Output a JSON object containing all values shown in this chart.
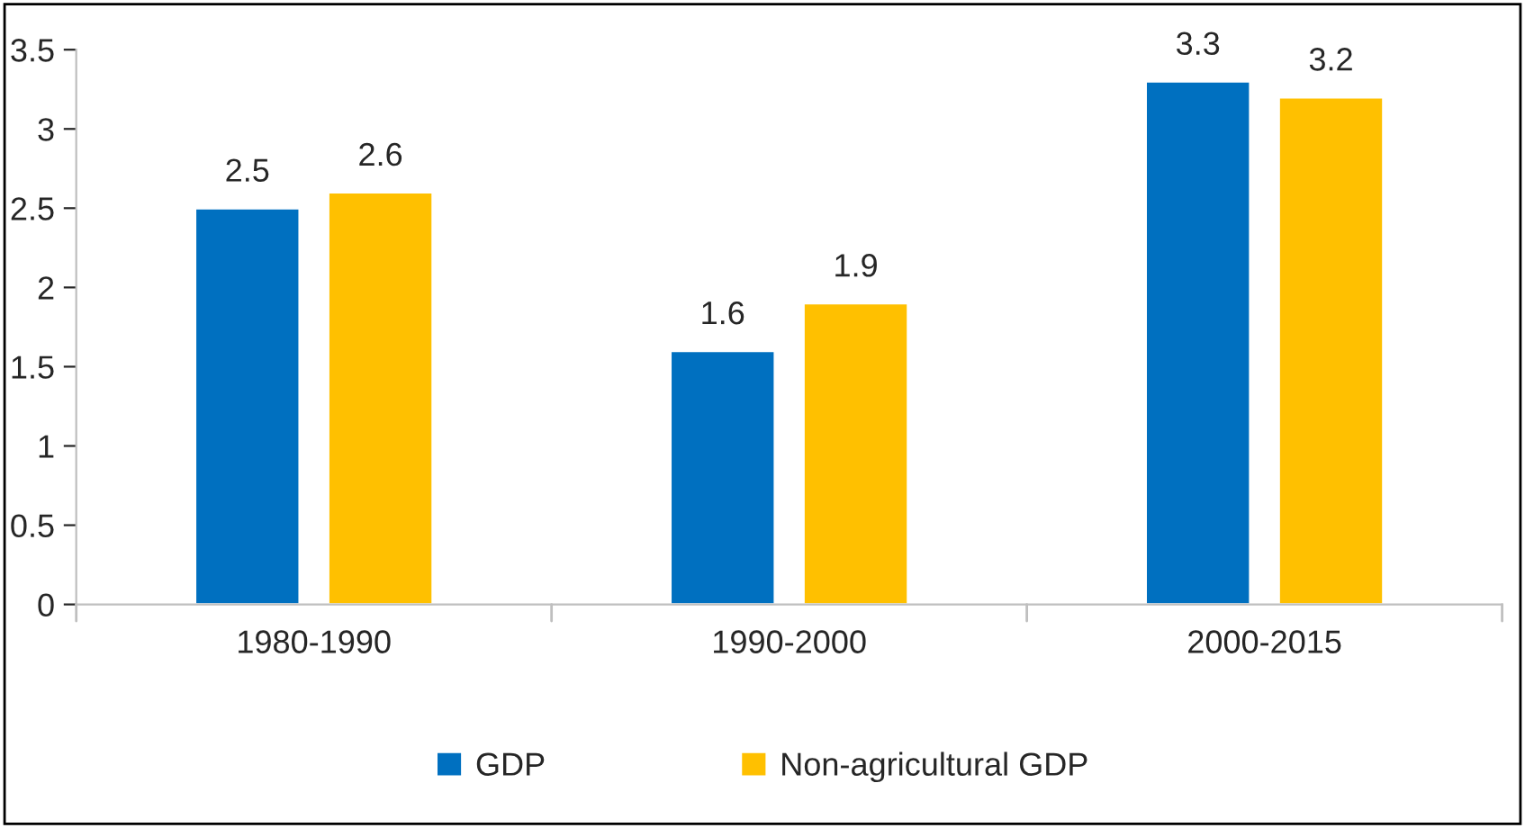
{
  "chart_data": {
    "type": "bar",
    "categories": [
      "1980-1990",
      "1990-2000",
      "2000-2015"
    ],
    "series": [
      {
        "name": "GDP",
        "color": "#0070c0",
        "values": [
          2.5,
          1.6,
          3.3
        ]
      },
      {
        "name": "Non-agricultural GDP",
        "color": "#ffc000",
        "values": [
          2.6,
          1.9,
          3.2
        ]
      }
    ],
    "ylim": [
      0,
      3.5
    ],
    "yticks": [
      0,
      0.5,
      1,
      1.5,
      2,
      2.5,
      3,
      3.5
    ],
    "data_labels": true,
    "grid": false,
    "legend": "bottom"
  }
}
